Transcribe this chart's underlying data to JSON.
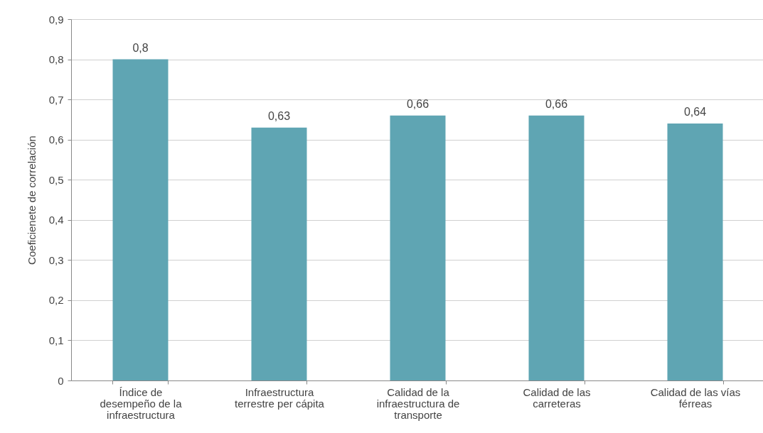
{
  "chart_data": {
    "type": "bar",
    "ylabel": "Coeficienete de correlación",
    "categories": [
      "Índice de desempeño de la infraestructura",
      "Infraestructura terrestre per cápita",
      "Calidad de la infraestructura de transporte",
      "Calidad de las carreteras",
      "Calidad de las vías férreas"
    ],
    "values": [
      0.8,
      0.63,
      0.66,
      0.66,
      0.64
    ],
    "value_labels": [
      "0,8",
      "0,63",
      "0,66",
      "0,66",
      "0,64"
    ],
    "color": "#5fa5b3",
    "ylim": [
      0,
      0.9
    ],
    "yticks": [
      0,
      {
        "value": 0.1,
        "label": "0,1"
      },
      {
        "value": 0.2,
        "label": "0,2"
      },
      {
        "value": 0.3,
        "label": "0,3"
      },
      {
        "value": 0.4,
        "label": "0,4"
      },
      {
        "value": 0.5,
        "label": "0,5"
      },
      {
        "value": 0.6,
        "label": "0,6"
      },
      {
        "value": 0.7,
        "label": "0,7"
      },
      {
        "value": 0.8,
        "label": "0,8"
      },
      {
        "value": 0.9,
        "label": "0,9"
      }
    ],
    "grid": "y"
  }
}
